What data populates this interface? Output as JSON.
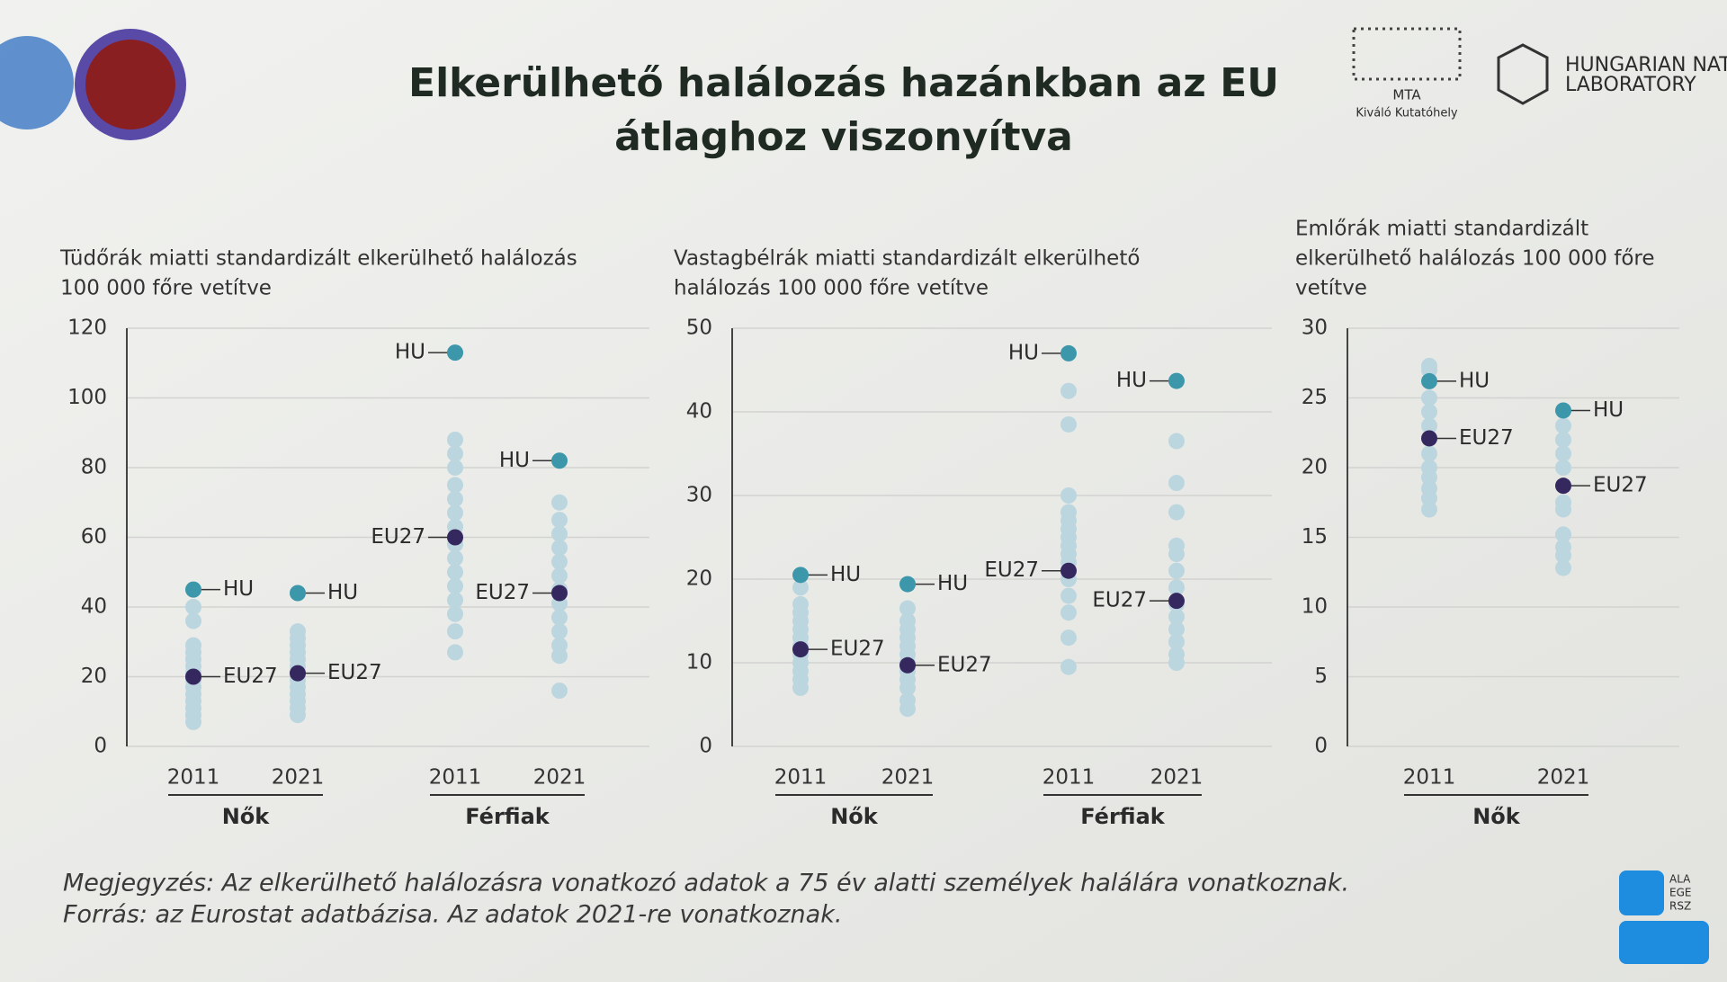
{
  "header": {
    "title_lines": [
      "Elkerülhető halálozás hazánkban az EU",
      "átlaghoz viszonyítva"
    ],
    "logos": {
      "mta": [
        "MTA",
        "Kiváló Kutatóhely"
      ],
      "lab": [
        "HUNGARIAN NAT",
        "LABORATORY"
      ],
      "zeg": [
        "ALA",
        "EGE",
        "RSZ"
      ]
    }
  },
  "chart_data": [
    {
      "type": "strip",
      "title_lines": [
        "Tüdőrák miatti standardizált elkerülhető halálozás",
        "100 000 főre vetítve"
      ],
      "groups": [
        {
          "name": "Nők",
          "categories": [
            "2011",
            "2021"
          ]
        },
        {
          "name": "Férfiak",
          "categories": [
            "2011",
            "2021"
          ]
        }
      ],
      "ylim": [
        0,
        120
      ],
      "yticks": [
        0,
        20,
        40,
        60,
        80,
        100,
        120
      ],
      "grid": true,
      "series": [
        {
          "color": "#bcd6e0",
          "values": [
            [
              7,
              9,
              11,
              13,
              15,
              17,
              19,
              21,
              23,
              25,
              27,
              29,
              36,
              40
            ],
            [
              9,
              11,
              13,
              15,
              17,
              19,
              23,
              25,
              27,
              29,
              31,
              33
            ],
            [
              27,
              33,
              38,
              42,
              46,
              50,
              54,
              58,
              63,
              67,
              71,
              75,
              80,
              84,
              88
            ],
            [
              16,
              26,
              29,
              33,
              37,
              41,
              45,
              49,
              53,
              57,
              61,
              65,
              70
            ]
          ]
        },
        {
          "name": "EU27",
          "color": "#35285f",
          "values": [
            20,
            21,
            60,
            44
          ]
        },
        {
          "name": "HU",
          "color": "#3c97aa",
          "values": [
            45,
            44,
            113,
            82
          ]
        }
      ]
    },
    {
      "type": "strip",
      "title_lines": [
        "Vastagbélrák miatti standardizált elkerülhető",
        "halálozás 100 000 főre vetítve"
      ],
      "groups": [
        {
          "name": "Nők",
          "categories": [
            "2011",
            "2021"
          ]
        },
        {
          "name": "Férfiak",
          "categories": [
            "2011",
            "2021"
          ]
        }
      ],
      "ylim": [
        0,
        50
      ],
      "yticks": [
        0,
        10,
        20,
        30,
        40,
        50
      ],
      "grid": true,
      "series": [
        {
          "color": "#bcd6e0",
          "values": [
            [
              7,
              8,
              9,
              10,
              11,
              12,
              13,
              14,
              15,
              16,
              17,
              19
            ],
            [
              4.5,
              5.5,
              7,
              8,
              9,
              10,
              11,
              12,
              13,
              14,
              15,
              16.5
            ],
            [
              9.5,
              13,
              16,
              18,
              20,
              22,
              23,
              24,
              25,
              26,
              27,
              28,
              30,
              38.5,
              42.5
            ],
            [
              10,
              11,
              12.5,
              14,
              15.5,
              17,
              19,
              21,
              23,
              24,
              28,
              31.5,
              36.5
            ]
          ]
        },
        {
          "name": "EU27",
          "color": "#35285f",
          "values": [
            11.6,
            9.7,
            21,
            17.4
          ]
        },
        {
          "name": "HU",
          "color": "#3c97aa",
          "values": [
            20.5,
            19.4,
            47,
            43.7
          ]
        }
      ]
    },
    {
      "type": "strip",
      "title_lines": [
        "Emlőrák miatti standardizált",
        "elkerülhető halálozás 100 000 főre",
        "vetítve"
      ],
      "groups": [
        {
          "name": "Nők",
          "categories": [
            "2011",
            "2021"
          ]
        }
      ],
      "ylim": [
        0,
        30
      ],
      "yticks": [
        0,
        5,
        10,
        15,
        20,
        25,
        30
      ],
      "grid": true,
      "series": [
        {
          "color": "#bcd6e0",
          "values": [
            [
              17,
              17.8,
              18.5,
              19.3,
              20,
              21,
              23,
              24,
              25,
              27,
              27.3
            ],
            [
              12.8,
              13.7,
              14.3,
              15.2,
              17,
              17.5,
              20,
              21,
              22,
              23
            ]
          ]
        },
        {
          "name": "EU27",
          "color": "#35285f",
          "values": [
            22.1,
            18.7
          ]
        },
        {
          "name": "HU",
          "color": "#3c97aa",
          "values": [
            26.2,
            24.1
          ]
        }
      ]
    }
  ],
  "footer": {
    "note": "Megjegyzés: Az elkerülhető halálozásra vonatkozó adatok a 75 év alatti személyek halálára vonatkoznak.",
    "source": "Forrás: az Eurostat adatbázisa. Az adatok 2021-re vonatkoznak."
  }
}
